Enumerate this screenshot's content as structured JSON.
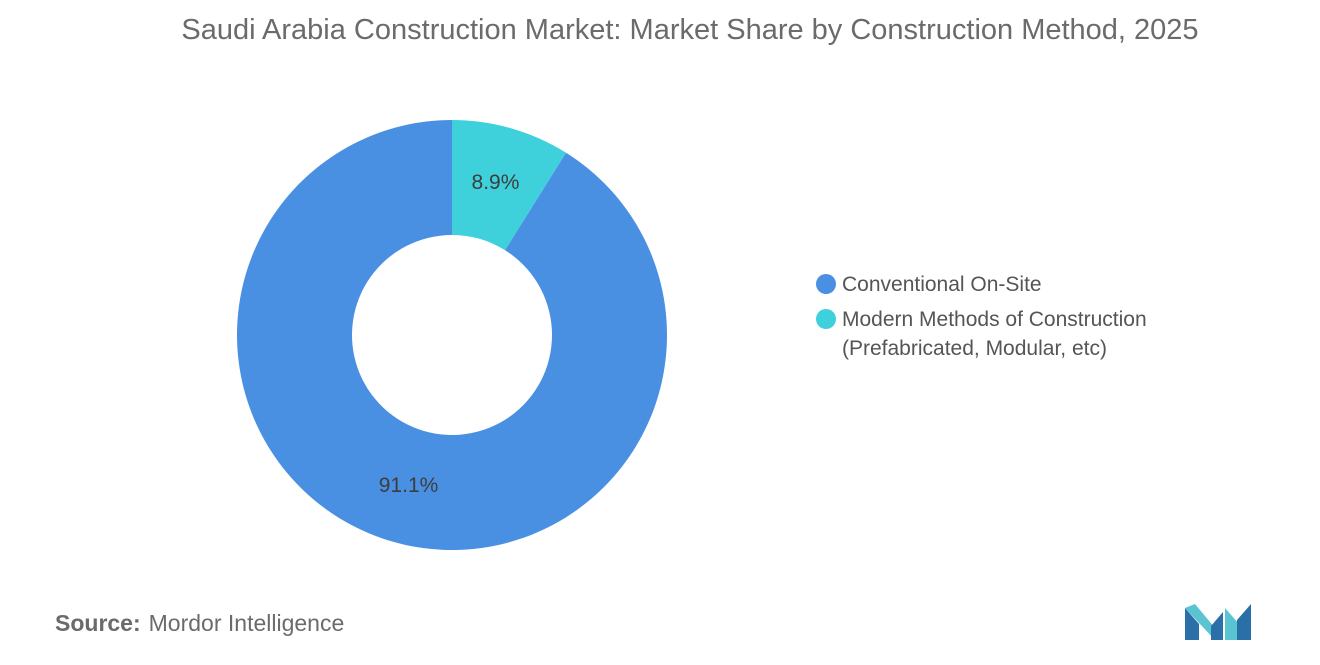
{
  "title": "Saudi Arabia Construction Market: Market Share by Construction Method, 2025",
  "source": {
    "prefix": "Source:",
    "name": "Mordor Intelligence"
  },
  "chart_data": {
    "type": "pie",
    "donut": true,
    "title": "Saudi Arabia Construction Market: Market Share by Construction Method, 2025",
    "unit": "%",
    "slices": [
      {
        "label": "Modern Methods of Construction (Prefabricated, Modular, etc)",
        "value": 8.9,
        "display": "8.9%",
        "color": "#3ed1dc"
      },
      {
        "label": "Conventional On-Site",
        "value": 91.1,
        "display": "91.1%",
        "color": "#4a90e2"
      }
    ],
    "legend": {
      "placement": "right",
      "entries": [
        {
          "label": "Conventional On-Site",
          "color": "#4a90e2"
        },
        {
          "label": "Modern Methods of Construction (Prefabricated, Modular, etc)",
          "color": "#3ed1dc"
        }
      ]
    }
  }
}
